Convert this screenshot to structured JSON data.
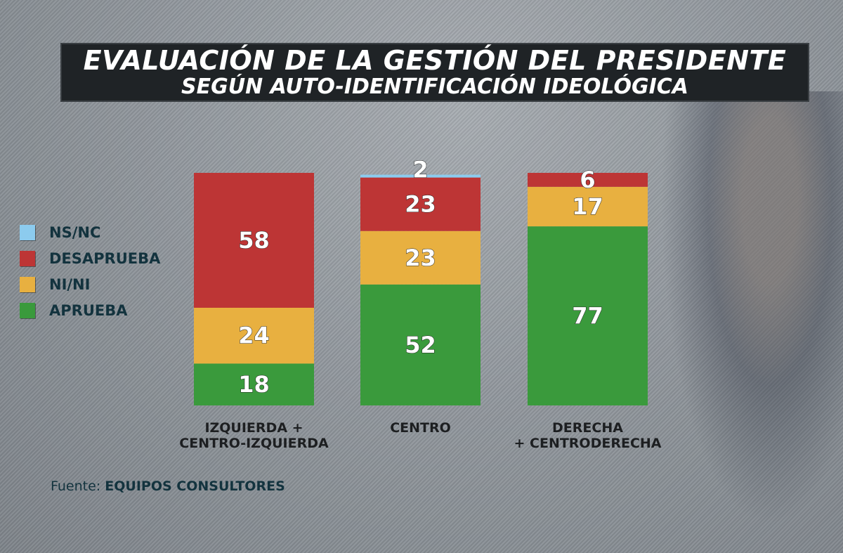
{
  "chart_data": {
    "type": "bar",
    "stacked": true,
    "title": "EVALUACIÓN DE LA GESTIÓN DEL PRESIDENTE",
    "subtitle": "SEGÚN AUTO-IDENTIFICACIÓN IDEOLÓGICA",
    "categories": [
      "IZQUIERDA +\nCENTRO-IZQUIERDA",
      "CENTRO",
      "DERECHA\n+ CENTRODERECHA"
    ],
    "category_lines": [
      [
        "IZQUIERDA +",
        "CENTRO-IZQUIERDA"
      ],
      [
        "CENTRO"
      ],
      [
        "DERECHA",
        "+ CENTRODERECHA"
      ]
    ],
    "series": [
      {
        "name": "APRUEBA",
        "color": "#3a9a3c",
        "values": [
          18,
          52,
          77
        ]
      },
      {
        "name": "NI/NI",
        "color": "#e8b040",
        "values": [
          24,
          23,
          17
        ]
      },
      {
        "name": "DESAPRUEBA",
        "color": "#bd3535",
        "values": [
          58,
          23,
          6
        ]
      },
      {
        "name": "NS/NC",
        "color": "#8ccbee",
        "values": [
          0,
          2,
          0
        ]
      }
    ],
    "legend_order": [
      "NS/NC",
      "DESAPRUEBA",
      "NI/NI",
      "APRUEBA"
    ],
    "legend_position": "left",
    "ylim": [
      0,
      100
    ],
    "grid": false
  },
  "source": {
    "prefix": "Fuente:",
    "name": "EQUIPOS CONSULTORES"
  }
}
